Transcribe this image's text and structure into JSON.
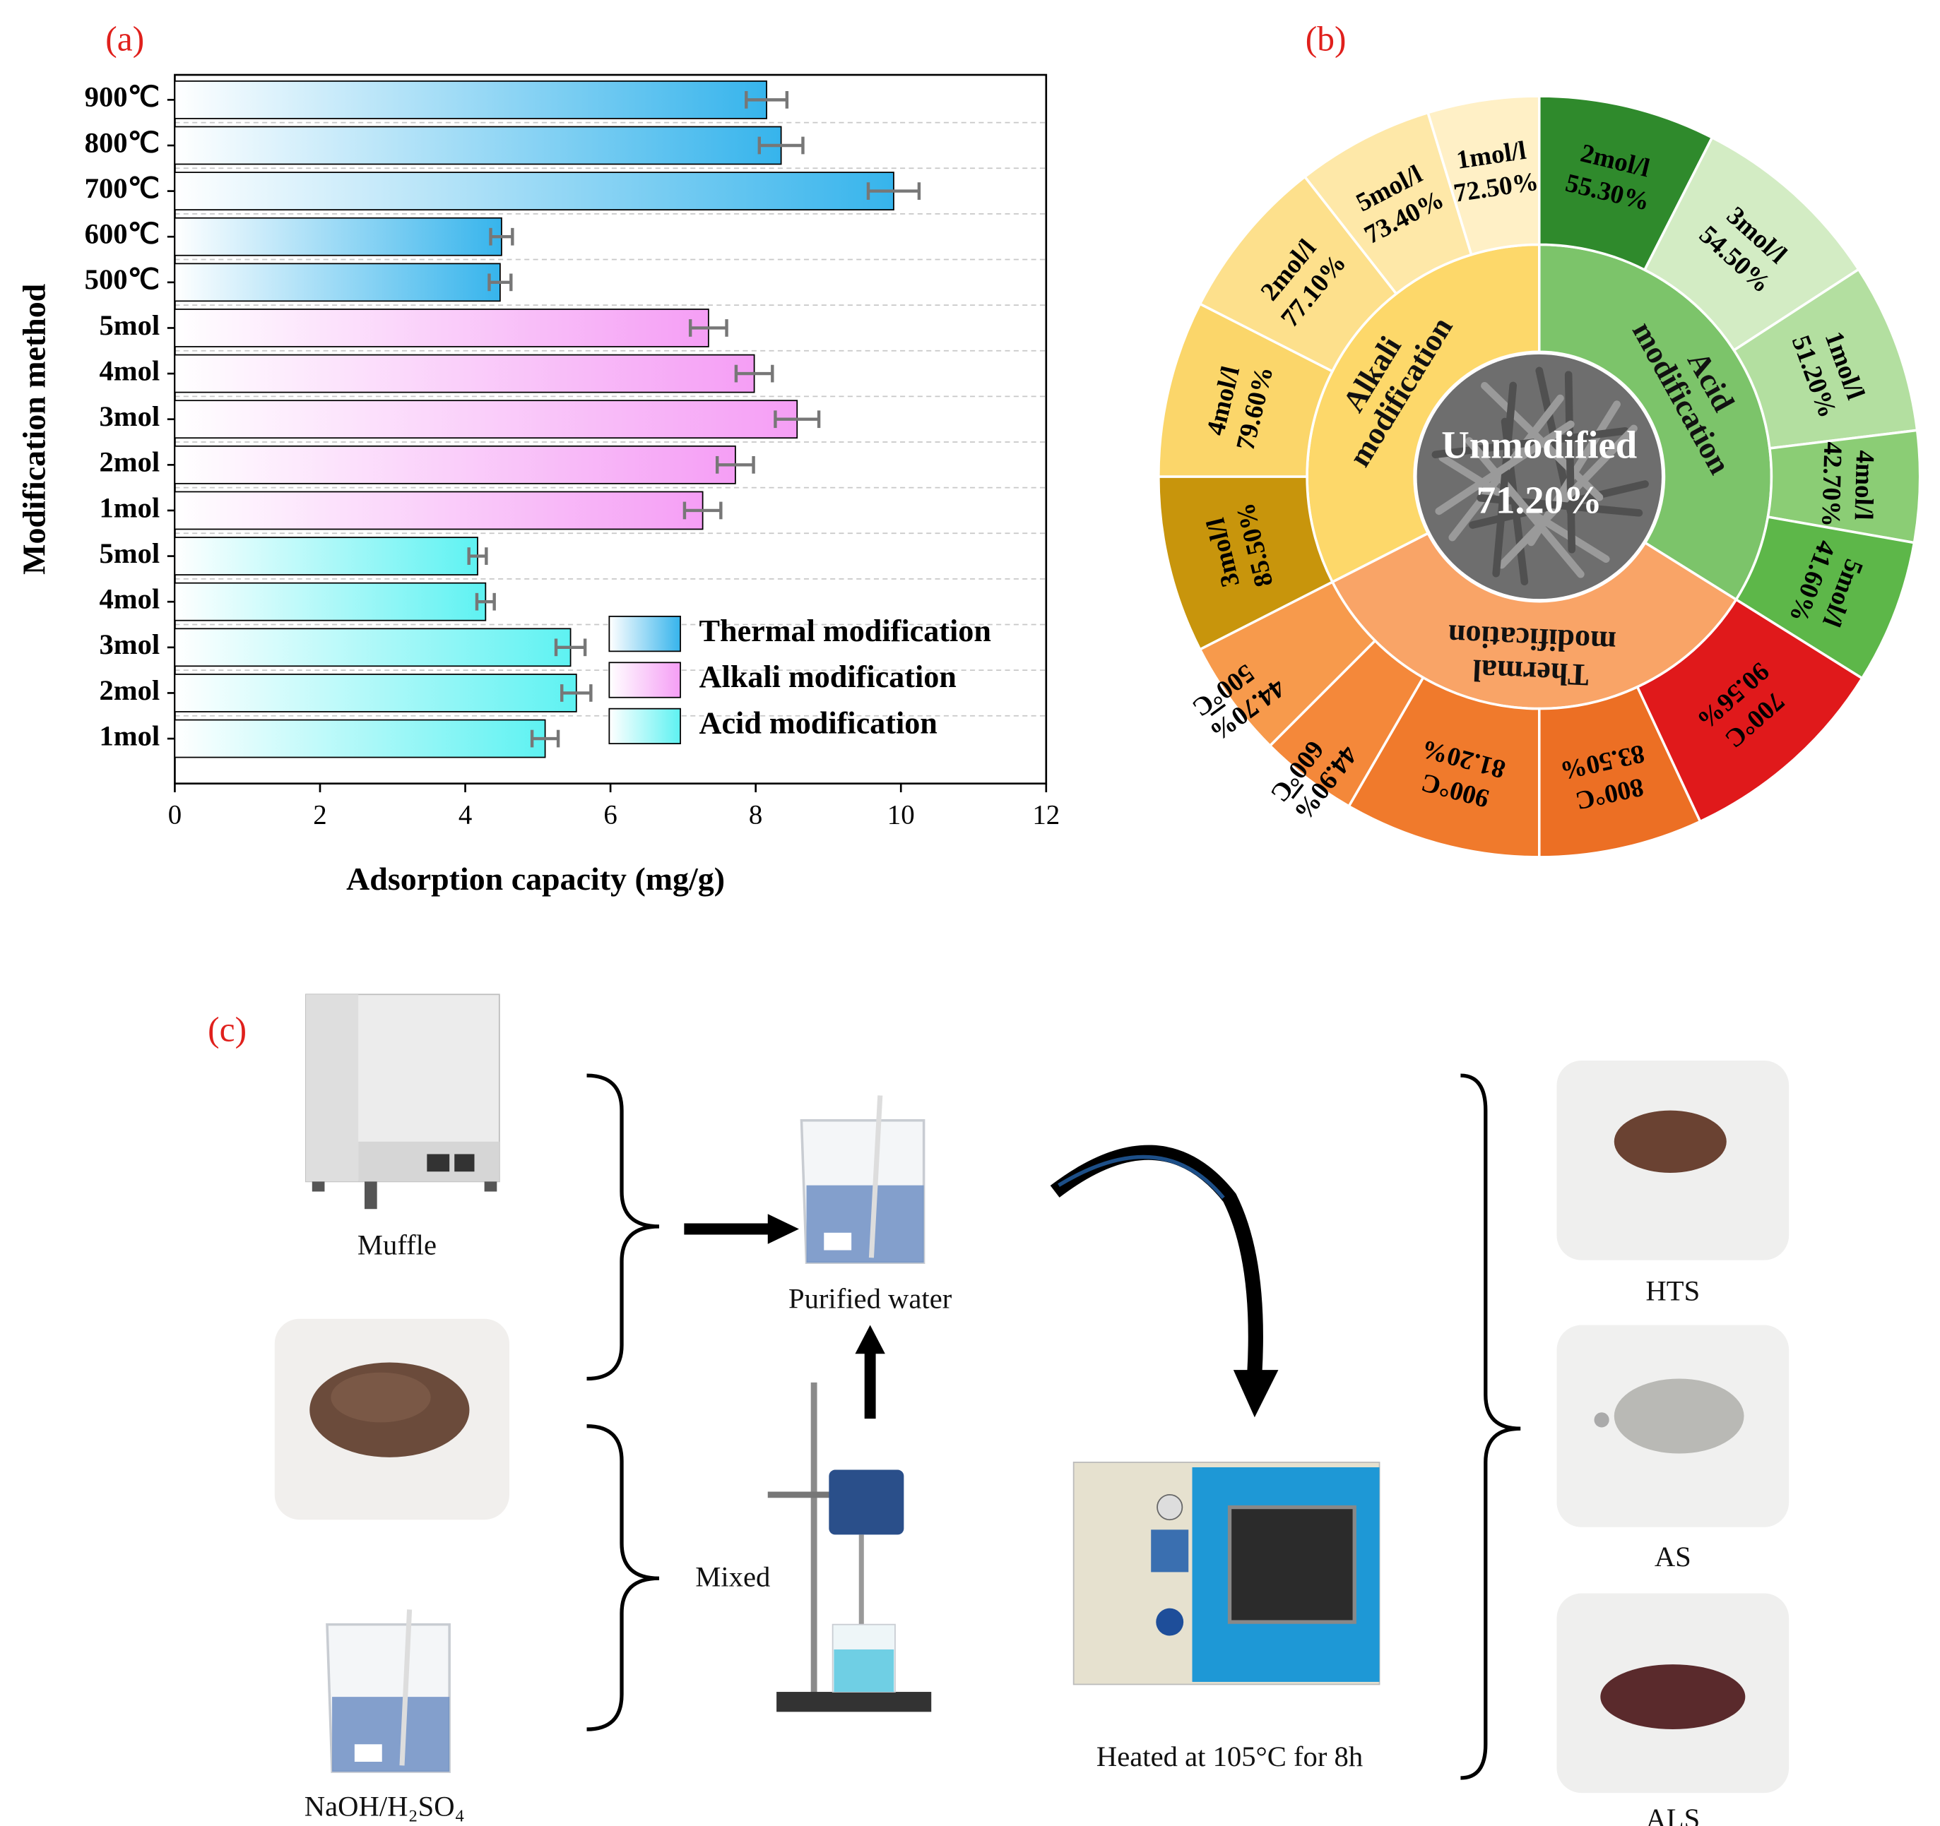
{
  "chart_data": [
    {
      "type": "bar",
      "orientation": "horizontal",
      "title": "(a)",
      "x_label": "Adsorption capacity (mg/g)",
      "y_label": "Modification method",
      "categories": [
        "900℃",
        "800℃",
        "700℃",
        "600℃",
        "500℃",
        "5mol",
        "4mol",
        "3mol",
        "2mol",
        "1mol",
        "5mol",
        "4mol",
        "3mol",
        "2mol",
        "1mol"
      ],
      "series": [
        {
          "name": "Thermal modification",
          "color": "#36b4ec",
          "values": [
            8.15,
            8.35,
            9.9,
            4.5,
            4.48,
            null,
            null,
            null,
            null,
            null,
            null,
            null,
            null,
            null,
            null
          ],
          "errors": [
            0.28,
            0.3,
            0.35,
            0.15,
            0.15,
            null,
            null,
            null,
            null,
            null,
            null,
            null,
            null,
            null,
            null
          ]
        },
        {
          "name": "Alkali modification",
          "color": "#f59ef5",
          "values": [
            null,
            null,
            null,
            null,
            null,
            7.35,
            7.98,
            8.57,
            7.72,
            7.27,
            null,
            null,
            null,
            null,
            null
          ],
          "errors": [
            null,
            null,
            null,
            null,
            null,
            0.25,
            0.25,
            0.3,
            0.25,
            0.25,
            null,
            null,
            null,
            null,
            null
          ]
        },
        {
          "name": "Acid modification",
          "color": "#5ef2f2",
          "values": [
            null,
            null,
            null,
            null,
            null,
            null,
            null,
            null,
            null,
            null,
            4.17,
            4.28,
            5.45,
            5.53,
            5.1
          ],
          "errors": [
            null,
            null,
            null,
            null,
            null,
            null,
            null,
            null,
            null,
            null,
            0.12,
            0.12,
            0.2,
            0.2,
            0.18
          ]
        }
      ],
      "xlim": [
        0,
        12
      ],
      "xticks": [
        0,
        2,
        4,
        6,
        8,
        10,
        12
      ],
      "legend": "lower right"
    },
    {
      "type": "sunburst",
      "title": "(b)",
      "center": {
        "name": "Unmodified",
        "value": 71.2,
        "value_label": "71.20%"
      },
      "groups": [
        {
          "name": "Acid modification",
          "color": "#7cc46a",
          "categories": [
            "2mol/l",
            "3mol/l",
            "1mol/l",
            "4mol/l",
            "5mol/l"
          ],
          "values": [
            55.3,
            54.5,
            51.2,
            42.7,
            41.6
          ],
          "value_labels": [
            "55.30%",
            "54.50%",
            "51.20%",
            "42.70%",
            "41.60%"
          ],
          "colors": [
            "#2f8a2c",
            "#d3ecc4",
            "#b3dfa0",
            "#8bcd75",
            "#5db749"
          ]
        },
        {
          "name": "Thermal modification",
          "color": "#f9a467",
          "categories": [
            "700°C",
            "800°C",
            "900°C",
            "600°C",
            "500°C"
          ],
          "values": [
            90.56,
            83.5,
            81.2,
            44.9,
            44.7
          ],
          "value_labels": [
            "90.56%",
            "83.50%",
            "81.20%",
            "44.90%",
            "44.70%"
          ],
          "colors": [
            "#e0191b",
            "#ec6f24",
            "#f07a2c",
            "#f4883a",
            "#f79a4c"
          ]
        },
        {
          "name": "Alkali modification",
          "color": "#fdd86a",
          "categories": [
            "3mol/l",
            "4mol/l",
            "2mol/l",
            "5mol/l",
            "1mol/l"
          ],
          "values": [
            85.5,
            79.6,
            77.1,
            73.4,
            72.5
          ],
          "value_labels": [
            "85.50%",
            "79.60%",
            "77.10%",
            "73.40%",
            "72.50%"
          ],
          "colors": [
            "#c8950c",
            "#fbd66a",
            "#fde08c",
            "#fee8a8",
            "#fff0c6"
          ]
        }
      ]
    }
  ],
  "diagram": {
    "title": "(c)",
    "nodes": [
      {
        "label": "Muffle"
      },
      {
        "label": "NaOH/H₂SO₄"
      },
      {
        "label": "Purified water"
      },
      {
        "label": "Mixed"
      },
      {
        "label": "Heated at 105°C for 8h"
      },
      {
        "label": "HTS"
      },
      {
        "label": "AS"
      },
      {
        "label": "ALS"
      }
    ]
  }
}
